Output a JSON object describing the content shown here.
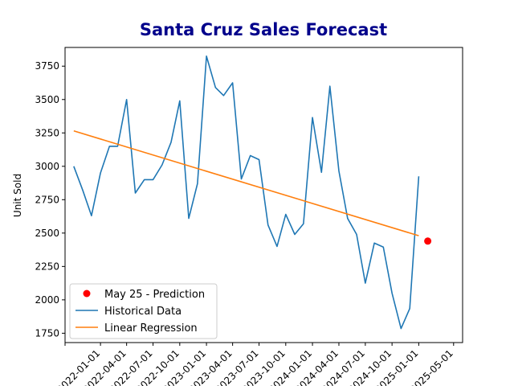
{
  "chart_data": {
    "type": "line",
    "title": "Santa Cruz Sales Forecast",
    "xlabel": "",
    "ylabel": "Unit Sold",
    "ylim": [
      1680,
      3890
    ],
    "yticks": [
      1750,
      2000,
      2250,
      2500,
      2750,
      3000,
      3250,
      3500,
      3750
    ],
    "xlim": [
      "2021-09-01",
      "2025-06-01"
    ],
    "xticks": [
      {
        "date": "2022-01-01",
        "label": "2022-01-01"
      },
      {
        "date": "2022-04-01",
        "label": "2022-04-01"
      },
      {
        "date": "2022-07-01",
        "label": "2022-07-01"
      },
      {
        "date": "2022-10-01",
        "label": "2022-10-01"
      },
      {
        "date": "2023-01-01",
        "label": "2023-01-01"
      },
      {
        "date": "2023-04-01",
        "label": "2023-04-01"
      },
      {
        "date": "2023-07-01",
        "label": "2023-07-01"
      },
      {
        "date": "2023-10-01",
        "label": "2023-10-01"
      },
      {
        "date": "2024-01-01",
        "label": "2024-01-01"
      },
      {
        "date": "2024-04-01",
        "label": "2024-04-01"
      },
      {
        "date": "2024-07-01",
        "label": "2024-07-01"
      },
      {
        "date": "2024-10-01",
        "label": "2024-10-01"
      },
      {
        "date": "2025-01-01",
        "label": "2025-01-01"
      },
      {
        "date": "2025-05-01",
        "label": "2025-05-01"
      }
    ],
    "grid": false,
    "legend_position": "lower-left",
    "series": [
      {
        "name": "Historical Data",
        "color": "#1f77b4",
        "kind": "line",
        "points": [
          {
            "x": "2021-10-01",
            "y": 3000
          },
          {
            "x": "2021-11-01",
            "y": 2820
          },
          {
            "x": "2021-12-01",
            "y": 2630
          },
          {
            "x": "2022-01-01",
            "y": 2950
          },
          {
            "x": "2022-02-01",
            "y": 3150
          },
          {
            "x": "2022-03-01",
            "y": 3150
          },
          {
            "x": "2022-04-01",
            "y": 3500
          },
          {
            "x": "2022-05-01",
            "y": 2800
          },
          {
            "x": "2022-06-01",
            "y": 2900
          },
          {
            "x": "2022-07-01",
            "y": 2900
          },
          {
            "x": "2022-08-01",
            "y": 3010
          },
          {
            "x": "2022-09-01",
            "y": 3180
          },
          {
            "x": "2022-10-01",
            "y": 3490
          },
          {
            "x": "2022-11-01",
            "y": 2610
          },
          {
            "x": "2022-12-01",
            "y": 2870
          },
          {
            "x": "2023-01-01",
            "y": 3825
          },
          {
            "x": "2023-02-01",
            "y": 3590
          },
          {
            "x": "2023-03-01",
            "y": 3530
          },
          {
            "x": "2023-04-01",
            "y": 3625
          },
          {
            "x": "2023-05-01",
            "y": 2905
          },
          {
            "x": "2023-06-01",
            "y": 3080
          },
          {
            "x": "2023-07-01",
            "y": 3050
          },
          {
            "x": "2023-08-01",
            "y": 2560
          },
          {
            "x": "2023-09-01",
            "y": 2400
          },
          {
            "x": "2023-10-01",
            "y": 2640
          },
          {
            "x": "2023-11-01",
            "y": 2490
          },
          {
            "x": "2023-12-01",
            "y": 2570
          },
          {
            "x": "2024-01-01",
            "y": 3365
          },
          {
            "x": "2024-02-01",
            "y": 2955
          },
          {
            "x": "2024-03-01",
            "y": 3600
          },
          {
            "x": "2024-04-01",
            "y": 2965
          },
          {
            "x": "2024-05-01",
            "y": 2610
          },
          {
            "x": "2024-06-01",
            "y": 2490
          },
          {
            "x": "2024-07-01",
            "y": 2125
          },
          {
            "x": "2024-08-01",
            "y": 2425
          },
          {
            "x": "2024-09-01",
            "y": 2395
          },
          {
            "x": "2024-10-01",
            "y": 2050
          },
          {
            "x": "2024-11-01",
            "y": 1785
          },
          {
            "x": "2024-12-01",
            "y": 1935
          },
          {
            "x": "2025-01-01",
            "y": 2925
          }
        ]
      },
      {
        "name": "Linear Regression",
        "color": "#ff7f0e",
        "kind": "line",
        "points": [
          {
            "x": "2021-10-01",
            "y": 3265
          },
          {
            "x": "2025-01-01",
            "y": 2480
          }
        ]
      },
      {
        "name": "May 25 - Prediction",
        "color": "#ff0000",
        "kind": "scatter",
        "points": [
          {
            "x": "2025-02-01",
            "y": 2440
          }
        ]
      }
    ]
  }
}
